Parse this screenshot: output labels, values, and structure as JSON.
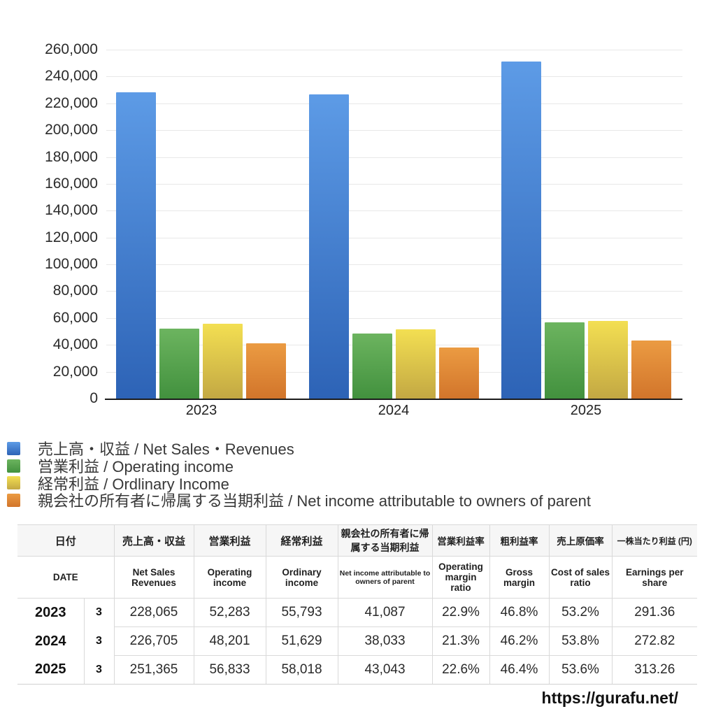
{
  "chart_data": {
    "type": "bar",
    "title": "",
    "categories": [
      "2023",
      "2024",
      "2025"
    ],
    "series": [
      {
        "id": "net-sales-revenues",
        "name": "売上高・収益 / Net Sales・Revenues",
        "color_top": "#5d9be6",
        "color_bottom": "#2d63b6",
        "values": [
          228065,
          226705,
          251365
        ]
      },
      {
        "id": "operating-income",
        "name": "営業利益 / Operating income",
        "color_top": "#6cb45f",
        "color_bottom": "#42913e",
        "values": [
          52283,
          48201,
          56833
        ]
      },
      {
        "id": "ordinary-income",
        "name": "経常利益 / Ordlinary Income",
        "color_top": "#f3df52",
        "color_bottom": "#c3a843",
        "values": [
          55793,
          51629,
          58018
        ]
      },
      {
        "id": "net-income-parent",
        "name": "親会社の所有者に帰属する当期利益 / Net income attributable to owners of parent",
        "color_top": "#eb9b42",
        "color_bottom": "#d2752b",
        "values": [
          41087,
          38033,
          43043
        ]
      }
    ],
    "xlabel": "",
    "ylabel": "",
    "ylim": [
      0,
      260000
    ],
    "ytick_step": 20000,
    "y_tick_labels": [
      "0",
      "20,000",
      "40,000",
      "60,000",
      "80,000",
      "100,000",
      "120,000",
      "140,000",
      "160,000",
      "180,000",
      "200,000",
      "220,000",
      "240,000",
      "260,000"
    ],
    "grid": true,
    "legend_position": "bottom-left",
    "colors": {
      "grid": "#e8e8e8",
      "axis": "#1b1b1b",
      "tick_text": "#2b2b2b"
    }
  },
  "table": {
    "header_jp": [
      "日付",
      "売上高・収益",
      "営業利益",
      "経常利益",
      "親会社の所有者に帰属する当期利益",
      "営業利益率",
      "粗利益率",
      "売上原価率",
      "一株当たり利益 (円)"
    ],
    "header_en": [
      "DATE",
      "Net Sales Revenues",
      "Operating income",
      "Ordinary income",
      "Net income attributable to owners of parent",
      "Operating margin ratio",
      "Gross margin",
      "Cost of sales ratio",
      "Earnings per share"
    ],
    "rows": [
      {
        "year": "2023",
        "month": "3",
        "values": [
          "228,065",
          "52,283",
          "55,793",
          "41,087",
          "22.9%",
          "46.8%",
          "53.2%",
          "291.36"
        ]
      },
      {
        "year": "2024",
        "month": "3",
        "values": [
          "226,705",
          "48,201",
          "51,629",
          "38,033",
          "21.3%",
          "46.2%",
          "53.8%",
          "272.82"
        ]
      },
      {
        "year": "2025",
        "month": "3",
        "values": [
          "251,365",
          "56,833",
          "58,018",
          "43,043",
          "22.6%",
          "46.4%",
          "53.6%",
          "313.26"
        ]
      }
    ],
    "border_color": "#d9d9d9",
    "header_bg": "#f6f6f6"
  },
  "footer": {
    "url": "https://gurafu.net/"
  }
}
